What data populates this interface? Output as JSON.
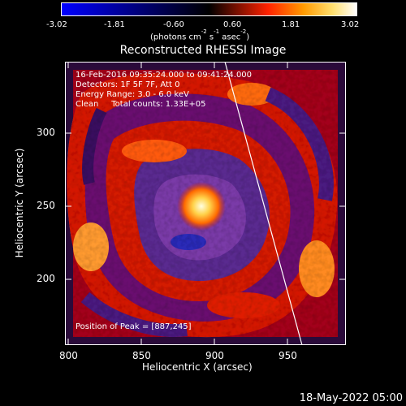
{
  "colorbar": {
    "ticks": [
      "-3.02",
      "-1.81",
      "-0.60",
      "0.60",
      "1.81",
      "3.02"
    ],
    "units_prefix": "(photons cm",
    "units_exp1": "-2",
    "units_mid1": " s",
    "units_exp2": "-1",
    "units_mid2": " asec",
    "units_exp3": "-2",
    "units_suffix": ")",
    "colors": {
      "low": "#0000ff",
      "mid": "#000000",
      "upper": "#ff2200",
      "high": "#ffffff"
    }
  },
  "title": "Reconstructed RHESSI Image",
  "info": {
    "time_range": "16-Feb-2016 09:35:24.000 to 09:41:24.000",
    "detectors": "Detectors: 1F 5F 7F, Att 0",
    "energy_range": "Energy Range: 3.0 - 6.0 keV",
    "method_counts": "Clean     Total counts: 1.33E+05",
    "peak_position": "Position of Peak = [887,245]"
  },
  "axes": {
    "x_title": "Heliocentric X (arcsec)",
    "y_title": "Heliocentric Y (arcsec)",
    "x_ticks": [
      "800",
      "850",
      "900",
      "950"
    ],
    "y_ticks": [
      "300",
      "250",
      "200"
    ]
  },
  "footer": {
    "timestamp": "18-May-2022 05:00"
  }
}
